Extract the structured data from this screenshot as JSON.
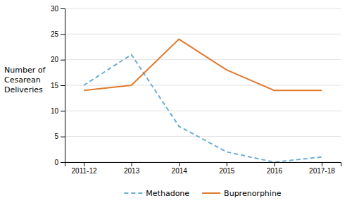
{
  "chart_data": {
    "type": "line",
    "y_label": "Number of\nCesarean\nDeliveries",
    "categories": [
      "2011-12",
      "2013",
      "2014",
      "2015",
      "2016",
      "2017-18"
    ],
    "series": [
      {
        "name": "Methadone",
        "color": "#6BAED6",
        "line_style": "dashed",
        "values": [
          15,
          21,
          7,
          2,
          0,
          1
        ]
      },
      {
        "name": "Buprenorphine",
        "color": "#E07B30",
        "line_style": "solid",
        "values": [
          14,
          15,
          24,
          18,
          14,
          14
        ]
      }
    ],
    "ylim": [
      0,
      30
    ],
    "yticks": [
      0,
      5,
      10,
      15,
      20,
      25,
      30
    ],
    "grid": true,
    "legend": "bottom"
  }
}
